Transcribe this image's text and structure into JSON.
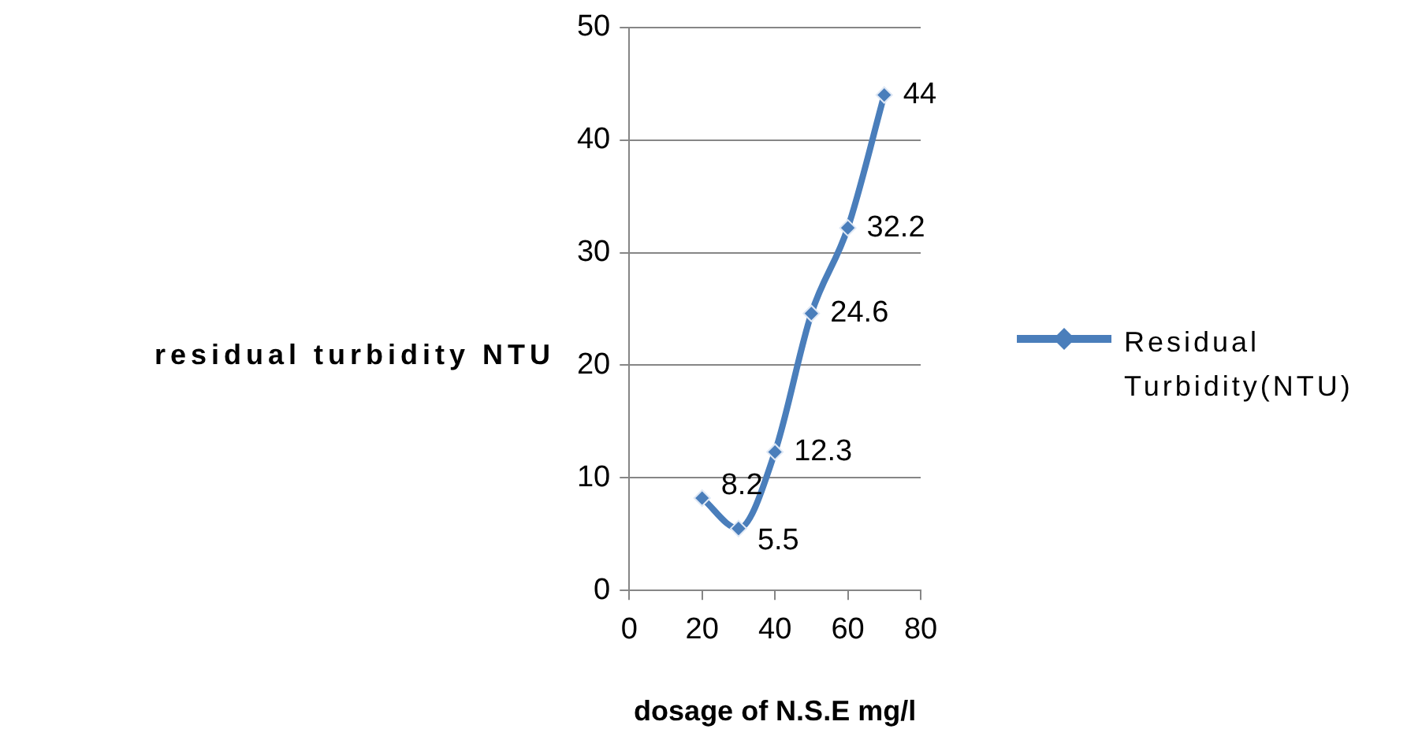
{
  "chart_data": {
    "type": "line",
    "xlabel": "dosage of N.S.E mg/l",
    "ylabel": "residual turbidity NTU",
    "x": [
      20,
      30,
      40,
      50,
      60,
      70
    ],
    "series": [
      {
        "name": "Residual Turbidity(NTU)",
        "color": "#4a7ebb",
        "values": [
          8.2,
          5.5,
          12.3,
          24.6,
          32.2,
          44
        ]
      }
    ],
    "xlim": [
      0,
      80
    ],
    "xticks": [
      0,
      20,
      40,
      60,
      80
    ],
    "ylim": [
      0,
      50
    ],
    "yticks": [
      0,
      10,
      20,
      30,
      40,
      50
    ],
    "grid": "y",
    "legend": "right",
    "marker": "diamond",
    "line_style": "solid",
    "data_labels": true
  }
}
